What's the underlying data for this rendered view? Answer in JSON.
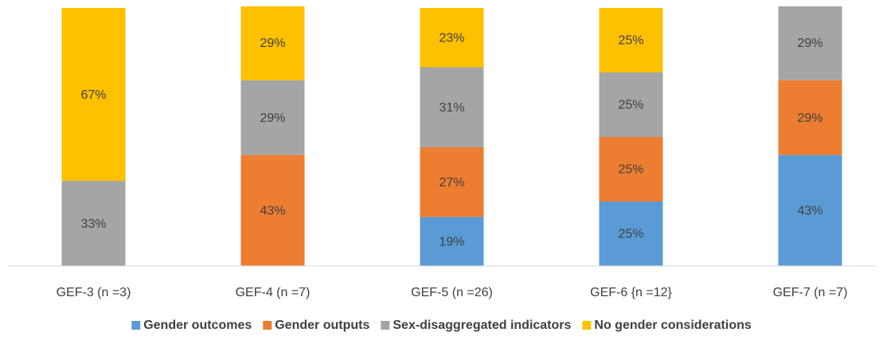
{
  "chart_data": {
    "type": "stacked_bar",
    "categories": [
      "GEF-3 (n =3)",
      "GEF-4 (n =7)",
      "GEF-5 (n =26)",
      "GEF-6 {n =12}",
      "GEF-7 (n =7)"
    ],
    "series": [
      {
        "name": "Gender outcomes",
        "color": "#5b9bd5",
        "values": [
          null,
          null,
          19,
          25,
          43
        ],
        "value_labels": [
          null,
          null,
          "19%",
          "25%",
          "43%"
        ]
      },
      {
        "name": "Gender outputs",
        "color": "#ed7d31",
        "values": [
          null,
          43,
          27,
          25,
          29
        ],
        "value_labels": [
          null,
          "43%",
          "27%",
          "25%",
          "29%"
        ]
      },
      {
        "name": "Sex-disaggregated indicators",
        "color": "#a5a5a5",
        "values": [
          33,
          29,
          31,
          25,
          29
        ],
        "value_labels": [
          "33%",
          "29%",
          "31%",
          "25%",
          "29%"
        ]
      },
      {
        "name": "No gender considerations",
        "color": "#ffc000",
        "values": [
          67,
          29,
          23,
          25,
          null
        ],
        "value_labels": [
          "67%",
          "29%",
          "23%",
          "25%",
          null
        ]
      }
    ],
    "ylim": [
      0,
      100
    ],
    "legend": "bottom"
  }
}
